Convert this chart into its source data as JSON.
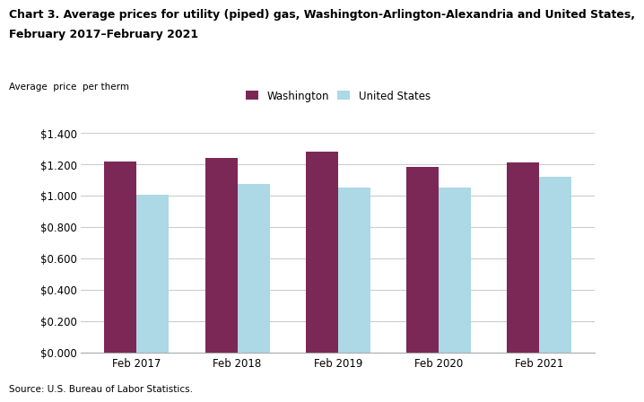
{
  "title_line1": "Chart 3. Average prices for utility (piped) gas, Washington-Arlington-Alexandria and United States,",
  "title_line2": "February 2017–February 2021",
  "ylabel": "Average  price  per therm",
  "source": "Source: U.S. Bureau of Labor Statistics.",
  "categories": [
    "Feb 2017",
    "Feb 2018",
    "Feb 2019",
    "Feb 2020",
    "Feb 2021"
  ],
  "washington": [
    1.214,
    1.24,
    1.278,
    1.183,
    1.211
  ],
  "us": [
    1.002,
    1.075,
    1.05,
    1.049,
    1.117
  ],
  "washington_color": "#7B2857",
  "us_color": "#ADD8E6",
  "ylim": [
    0,
    1.4
  ],
  "yticks": [
    0.0,
    0.2,
    0.4,
    0.6,
    0.8,
    1.0,
    1.2,
    1.4
  ],
  "legend_washington": "Washington",
  "legend_us": "United States",
  "grid_color": "#cccccc",
  "bar_width": 0.32
}
